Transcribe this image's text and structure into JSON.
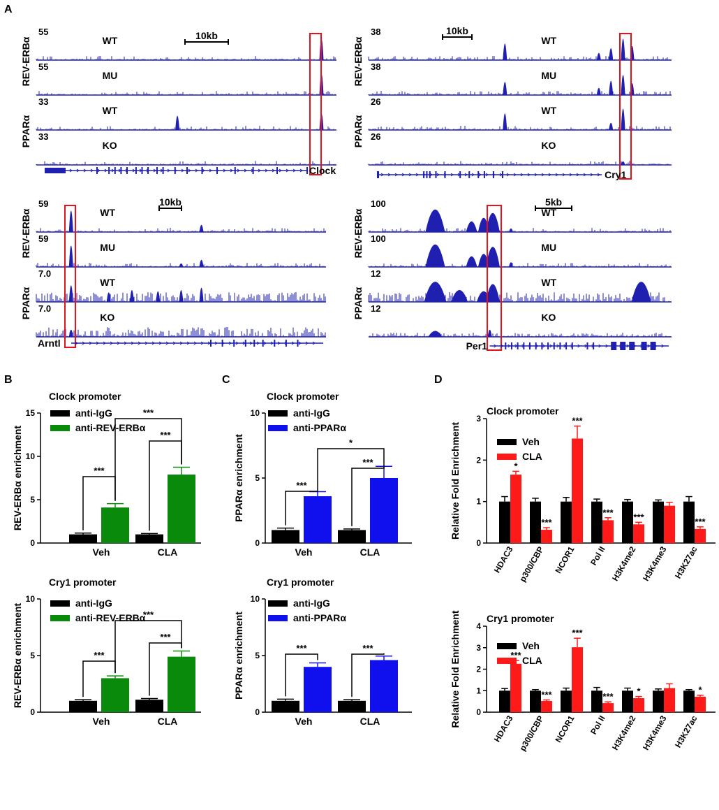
{
  "figure": {
    "panel_labels": [
      "A",
      "B",
      "C",
      "D"
    ]
  },
  "colors": {
    "track": "#1f1fb0",
    "black": "#000000",
    "green": "#0a8a0a",
    "blue": "#1010ee",
    "red": "#ff1a1a",
    "highlight": "#e8101a"
  },
  "tracks": [
    {
      "gene": "Clock",
      "scalebar": "10kb",
      "groups": [
        "REV-ERBα",
        "PPARα"
      ],
      "rows": [
        {
          "scale": "55",
          "cond": "WT"
        },
        {
          "scale": "55",
          "cond": "MU"
        },
        {
          "scale": "33",
          "cond": "WT"
        },
        {
          "scale": "33",
          "cond": "KO"
        }
      ]
    },
    {
      "gene": "Cry1",
      "scalebar": "10kb",
      "groups": [
        "REV-ERBα",
        "PPARα"
      ],
      "rows": [
        {
          "scale": "38",
          "cond": "WT"
        },
        {
          "scale": "38",
          "cond": "MU"
        },
        {
          "scale": "26",
          "cond": "WT"
        },
        {
          "scale": "26",
          "cond": "KO"
        }
      ]
    },
    {
      "gene": "Arntl",
      "scalebar": "10kb",
      "groups": [
        "REV-ERBα",
        "PPARα"
      ],
      "rows": [
        {
          "scale": "59",
          "cond": "WT"
        },
        {
          "scale": "59",
          "cond": "MU"
        },
        {
          "scale": "7.0",
          "cond": "WT"
        },
        {
          "scale": "7.0",
          "cond": "KO"
        }
      ]
    },
    {
      "gene": "Per1",
      "scalebar": "5kb",
      "groups": [
        "REV-ERBα",
        "PPARα"
      ],
      "rows": [
        {
          "scale": "100",
          "cond": "WT"
        },
        {
          "scale": "100",
          "cond": "MU"
        },
        {
          "scale": "12",
          "cond": "WT"
        },
        {
          "scale": "12",
          "cond": "KO"
        }
      ]
    }
  ],
  "chart_data": [
    {
      "panel": "B",
      "type": "bar",
      "title": "Clock promoter",
      "ylabel": "REV-ERBα enrichment",
      "ylim": [
        0,
        15
      ],
      "yticks": [
        0,
        5,
        10,
        15
      ],
      "categories": [
        "Veh",
        "CLA"
      ],
      "series": [
        {
          "name": "anti-IgG",
          "color": "#000000",
          "values": [
            1.0,
            1.0
          ],
          "errors": [
            0.15,
            0.1
          ]
        },
        {
          "name": "anti-REV-ERBα",
          "color": "#0a8a0a",
          "values": [
            4.1,
            7.9
          ],
          "errors": [
            0.45,
            0.85
          ]
        }
      ],
      "significance": [
        "***",
        "***",
        "***"
      ]
    },
    {
      "panel": "B",
      "type": "bar",
      "title": "Cry1 promoter",
      "ylabel": "REV-ERBα enrichment",
      "ylim": [
        0,
        10
      ],
      "yticks": [
        0,
        5,
        10
      ],
      "categories": [
        "Veh",
        "CLA"
      ],
      "series": [
        {
          "name": "anti-IgG",
          "color": "#000000",
          "values": [
            1.0,
            1.1
          ],
          "errors": [
            0.1,
            0.1
          ]
        },
        {
          "name": "anti-REV-ERBα",
          "color": "#0a8a0a",
          "values": [
            3.0,
            4.9
          ],
          "errors": [
            0.2,
            0.5
          ]
        }
      ],
      "significance": [
        "***",
        "***",
        "***"
      ]
    },
    {
      "panel": "C",
      "type": "bar",
      "title": "Clock promoter",
      "ylabel": "PPARα enrichment",
      "ylim": [
        0,
        10
      ],
      "yticks": [
        0,
        5,
        10
      ],
      "categories": [
        "Veh",
        "CLA"
      ],
      "series": [
        {
          "name": "anti-IgG",
          "color": "#000000",
          "values": [
            1.0,
            1.0
          ],
          "errors": [
            0.15,
            0.08
          ]
        },
        {
          "name": "anti-PPARα",
          "color": "#1010ee",
          "values": [
            3.6,
            5.0
          ],
          "errors": [
            0.35,
            0.9
          ]
        }
      ],
      "significance": [
        "***",
        "***",
        "*"
      ]
    },
    {
      "panel": "C",
      "type": "bar",
      "title": "Cry1 promoter",
      "ylabel": "PPARα enrichment",
      "ylim": [
        0,
        10
      ],
      "yticks": [
        0,
        5,
        10
      ],
      "categories": [
        "Veh",
        "CLA"
      ],
      "series": [
        {
          "name": "anti-IgG",
          "color": "#000000",
          "values": [
            1.0,
            1.0
          ],
          "errors": [
            0.15,
            0.1
          ]
        },
        {
          "name": "anti-PPARα",
          "color": "#1010ee",
          "values": [
            4.0,
            4.6
          ],
          "errors": [
            0.35,
            0.35
          ]
        }
      ],
      "significance": [
        "***",
        "***"
      ]
    },
    {
      "panel": "D",
      "type": "bar",
      "title": "Clock promoter",
      "ylabel": "Relative Fold Enrichment",
      "ylim": [
        0,
        3
      ],
      "yticks": [
        0,
        1,
        2,
        3
      ],
      "categories": [
        "HDAC3",
        "p300/CBP",
        "NCOR1",
        "Pol II",
        "H3K4me2",
        "H3K4me3",
        "H3K27ac"
      ],
      "series": [
        {
          "name": "Veh",
          "color": "#000000",
          "values": [
            1.0,
            1.0,
            1.0,
            1.0,
            1.0,
            1.0,
            1.0
          ],
          "errors": [
            0.12,
            0.08,
            0.1,
            0.06,
            0.05,
            0.04,
            0.12
          ]
        },
        {
          "name": "CLA",
          "color": "#ff1a1a",
          "values": [
            1.65,
            0.32,
            2.52,
            0.55,
            0.45,
            0.9,
            0.34
          ],
          "errors": [
            0.08,
            0.05,
            0.3,
            0.06,
            0.05,
            0.08,
            0.05
          ]
        }
      ],
      "stars": [
        "*",
        "***",
        "***",
        "***",
        "***",
        "",
        "***"
      ]
    },
    {
      "panel": "D",
      "type": "bar",
      "title": "Cry1 promoter",
      "ylabel": "Relative Fold Enrichment",
      "ylim": [
        0,
        4
      ],
      "yticks": [
        0,
        1,
        2,
        3,
        4
      ],
      "categories": [
        "HDAC3",
        "p300/CBP",
        "NCOR1",
        "Pol II",
        "H3K4me2",
        "H3K4me3",
        "H3K27ac"
      ],
      "series": [
        {
          "name": "Veh",
          "color": "#000000",
          "values": [
            1.0,
            1.0,
            1.0,
            1.0,
            1.0,
            1.0,
            1.0
          ],
          "errors": [
            0.1,
            0.05,
            0.12,
            0.15,
            0.12,
            0.08,
            0.05
          ]
        },
        {
          "name": "CLA",
          "color": "#ff1a1a",
          "values": [
            2.25,
            0.52,
            3.02,
            0.42,
            0.65,
            1.12,
            0.72
          ],
          "errors": [
            0.15,
            0.05,
            0.42,
            0.06,
            0.08,
            0.2,
            0.07
          ]
        }
      ],
      "stars": [
        "***",
        "***",
        "***",
        "***",
        "*",
        "",
        "*"
      ]
    }
  ]
}
